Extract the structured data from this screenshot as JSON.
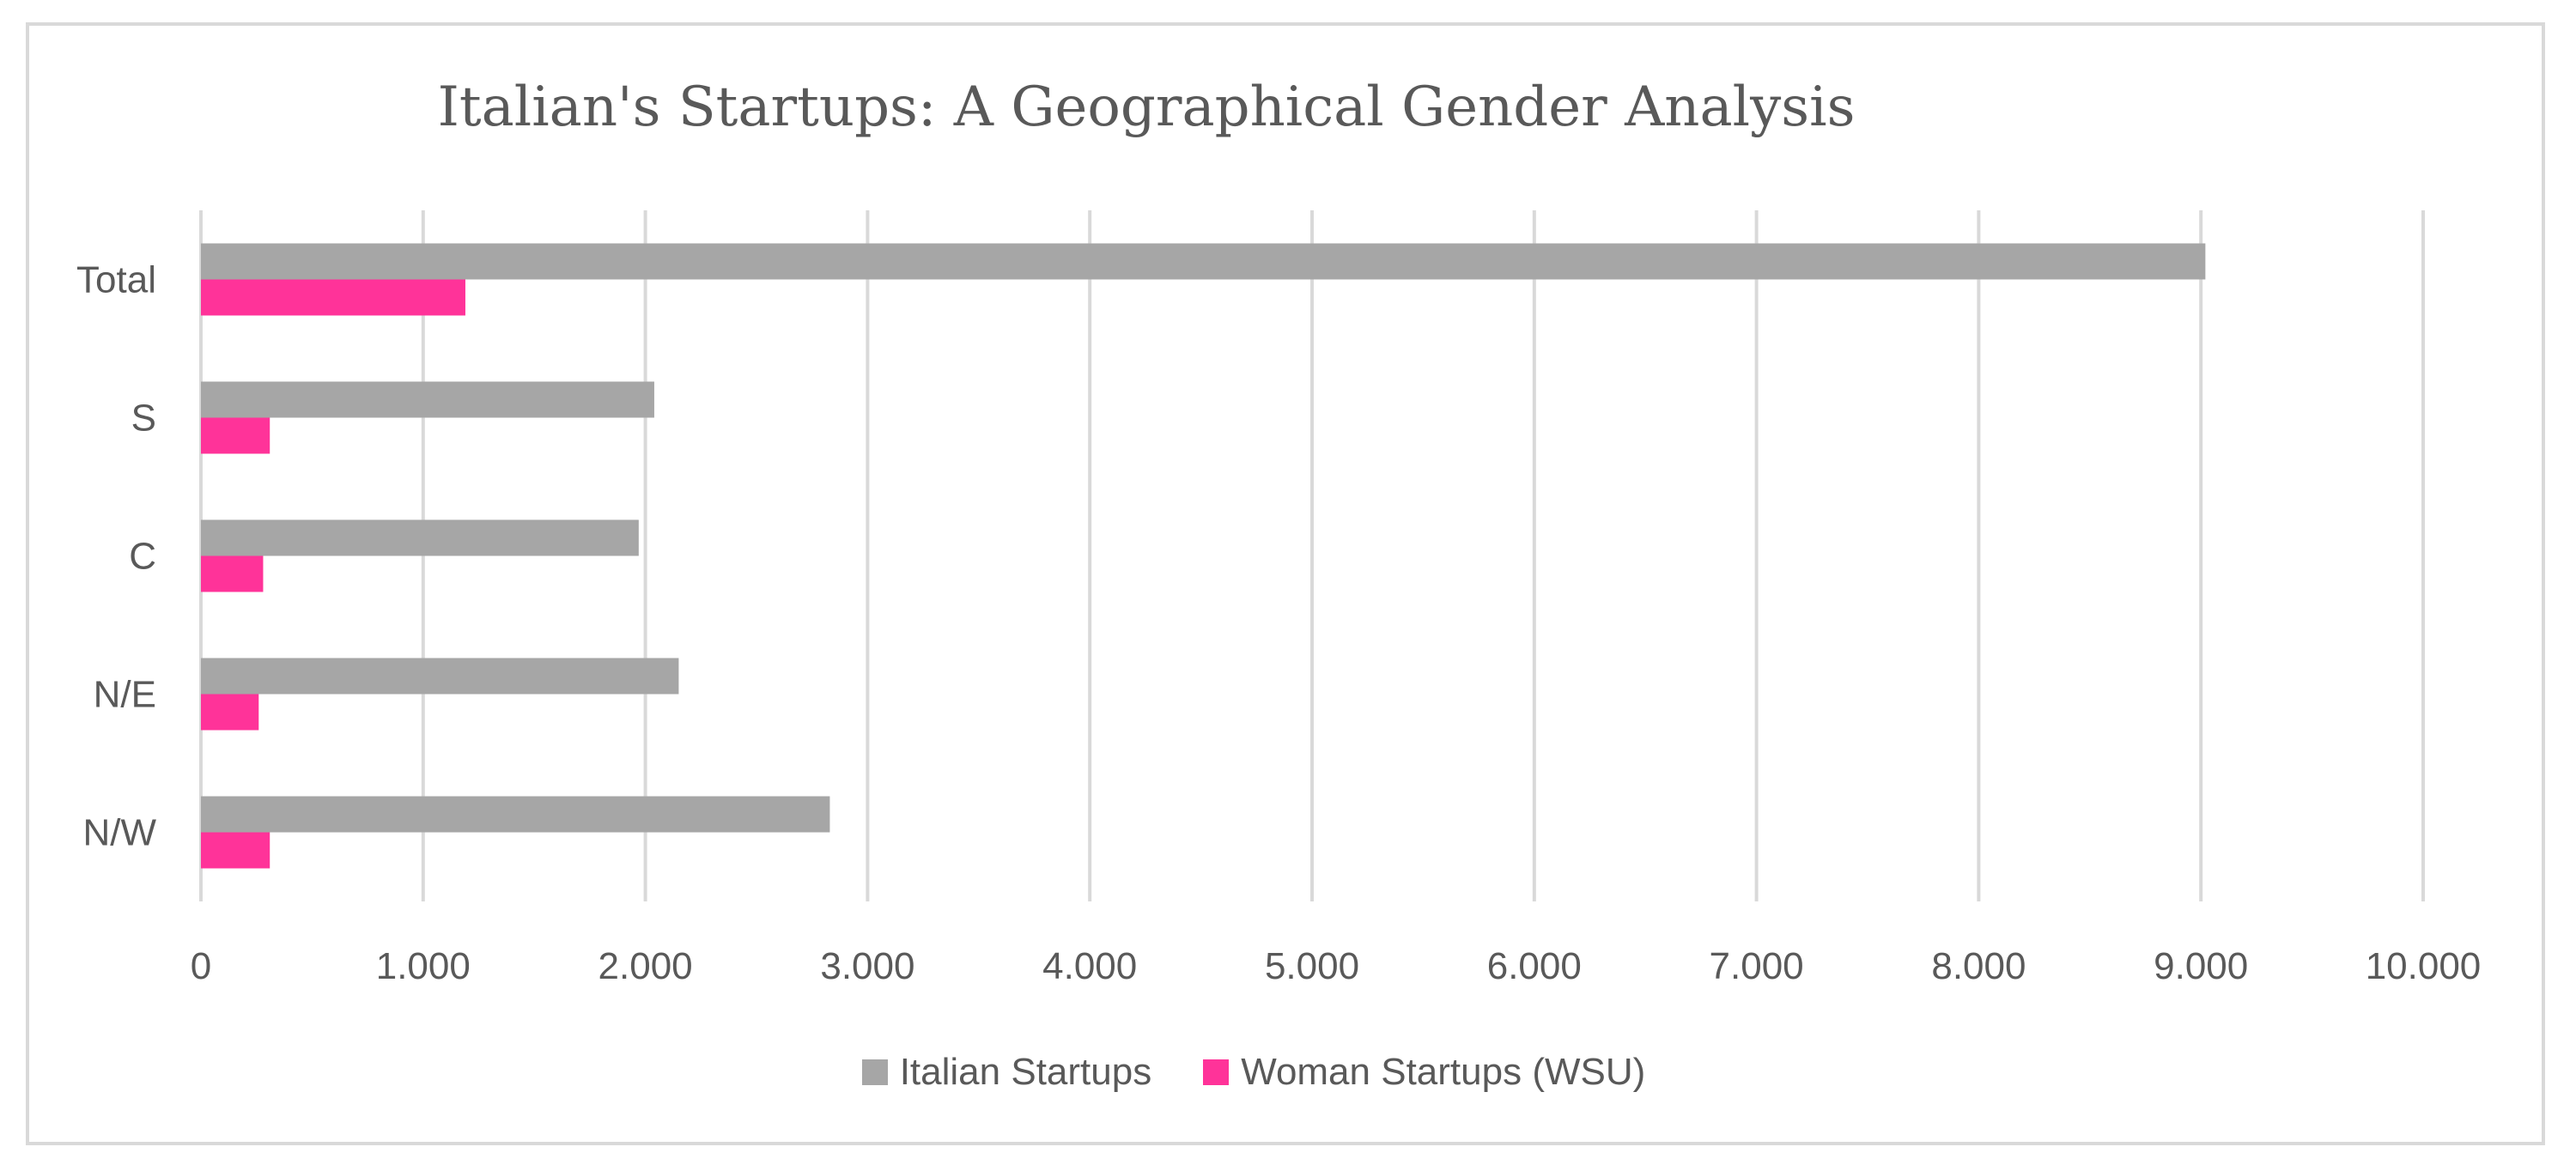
{
  "chart_data": {
    "type": "bar",
    "orientation": "horizontal",
    "title": "Italian's Startups: A Geographical Gender Analysis",
    "categories": [
      "Total",
      "S",
      "C",
      "N/E",
      "N/W"
    ],
    "series": [
      {
        "name": "Italian Startups",
        "color": "#a6a6a6",
        "values": [
          9020,
          2040,
          1970,
          2150,
          2830
        ]
      },
      {
        "name": "Woman Startups (WSU)",
        "color": "#ff3399",
        "values": [
          1190,
          310,
          280,
          260,
          310
        ]
      }
    ],
    "xlim": [
      0,
      10000
    ],
    "xticks": [
      0,
      1000,
      2000,
      3000,
      4000,
      5000,
      6000,
      7000,
      8000,
      9000,
      10000
    ],
    "xtick_labels": [
      "0",
      "1.000",
      "2.000",
      "3.000",
      "4.000",
      "5.000",
      "6.000",
      "7.000",
      "8.000",
      "9.000",
      "10.000"
    ],
    "grid": "vertical",
    "legend_position": "bottom"
  }
}
